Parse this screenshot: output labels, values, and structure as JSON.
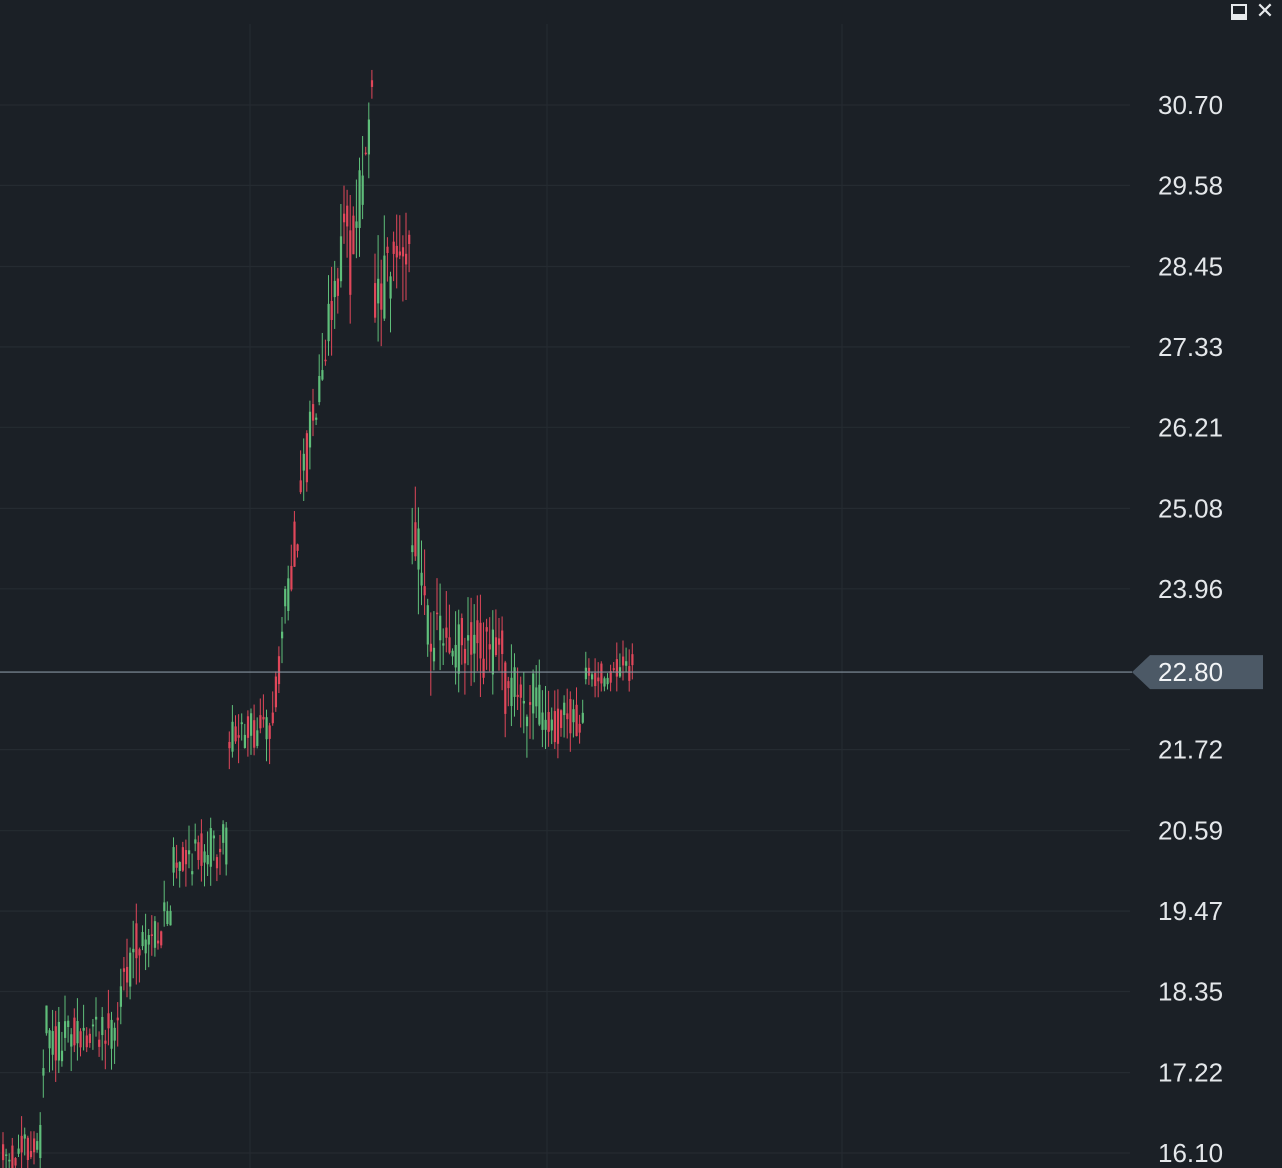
{
  "window": {
    "minimize_icon": "minimize-icon",
    "close_icon": "close-icon",
    "close_glyph": "✕"
  },
  "colors": {
    "background": "#1b2026",
    "grid": "#252b31",
    "up": "#5fbe7a",
    "down": "#e0475a",
    "price_line": "#8694a0",
    "price_tag": "#4c5966"
  },
  "chart_data": {
    "type": "candlestick",
    "y_axis": {
      "position": "right",
      "scale": "linear",
      "ticks": [
        "30.70",
        "29.58",
        "28.45",
        "27.33",
        "26.21",
        "25.08",
        "23.96",
        "22.80",
        "21.72",
        "20.59",
        "19.47",
        "18.35",
        "17.22",
        "16.10"
      ],
      "range": [
        16.1,
        30.7
      ]
    },
    "grid": true,
    "current_price": {
      "value": 22.8,
      "label": "22.80"
    },
    "segments": [
      [
        16.0,
        16.2,
        12,
        0.25
      ],
      [
        16.3,
        17.9,
        3,
        0.35
      ],
      [
        17.6,
        17.85,
        22,
        0.3
      ],
      [
        18.1,
        19.2,
        8,
        0.35
      ],
      [
        19.0,
        19.4,
        10,
        0.3
      ],
      [
        20.2,
        20.4,
        18,
        0.3
      ],
      [
        21.9,
        22.0,
        14,
        0.3
      ],
      [
        22.3,
        24.0,
        6,
        0.35
      ],
      [
        24.2,
        26.7,
        9,
        0.4
      ],
      [
        27.0,
        29.1,
        10,
        0.45
      ],
      [
        28.6,
        30.5,
        8,
        0.55
      ],
      [
        27.8,
        28.9,
        12,
        0.55
      ],
      [
        24.8,
        23.3,
        8,
        0.55
      ],
      [
        23.2,
        23.0,
        22,
        0.45
      ],
      [
        22.6,
        22.3,
        14,
        0.4
      ],
      [
        22.0,
        22.2,
        12,
        0.3
      ],
      [
        22.7,
        22.85,
        16,
        0.2
      ]
    ]
  }
}
